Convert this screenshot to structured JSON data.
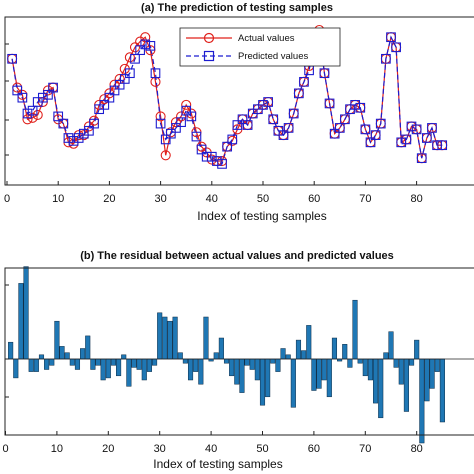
{
  "chart_data": [
    {
      "type": "line",
      "title": "(a) The prediction of testing samples",
      "xlabel": "Index of testing samples",
      "ylabel": "",
      "xlim": [
        0,
        85
      ],
      "ylim": [
        0,
        100
      ],
      "xticks": [
        0,
        10,
        20,
        30,
        40,
        50,
        60,
        70,
        80
      ],
      "grid": false,
      "legend_position": "top-center",
      "series": [
        {
          "name": "Actual values",
          "color": "#e0201b",
          "marker": "circle",
          "line": "solid",
          "x": [
            1,
            2,
            3,
            4,
            5,
            6,
            7,
            8,
            9,
            10,
            11,
            12,
            13,
            14,
            15,
            16,
            17,
            18,
            19,
            20,
            21,
            22,
            23,
            24,
            25,
            26,
            27,
            28,
            29,
            30,
            31,
            32,
            33,
            34,
            35,
            36,
            37,
            38,
            39,
            40,
            41,
            42,
            43,
            44,
            45,
            46,
            47,
            48,
            49,
            50,
            51,
            52,
            53,
            54,
            55,
            56,
            57,
            58,
            59,
            60,
            61,
            62,
            63,
            64,
            65,
            66,
            67,
            68,
            69,
            70,
            71,
            72,
            73,
            74,
            75,
            76,
            77,
            78,
            79,
            80,
            81,
            82,
            83,
            84,
            85
          ],
          "y": [
            80,
            60,
            55,
            38,
            39,
            41,
            50,
            58,
            60,
            38,
            35,
            22,
            21,
            27,
            27,
            33,
            37,
            48,
            52,
            56,
            62,
            66,
            73,
            81,
            88,
            92,
            95,
            86,
            64,
            40,
            13,
            29,
            36,
            40,
            48,
            42,
            29,
            19,
            15,
            10,
            9,
            9,
            19,
            23,
            31,
            38,
            34,
            42,
            45,
            48,
            50,
            38,
            30,
            27,
            32,
            42,
            56,
            64,
            75,
            95,
            100,
            70,
            49,
            28,
            32,
            38,
            45,
            48,
            46,
            31,
            22,
            27,
            35,
            80,
            95,
            88,
            22,
            24,
            33,
            31,
            11,
            25,
            32,
            20,
            20
          ]
        },
        {
          "name": "Predicted values",
          "color": "#1c1cd0",
          "marker": "square",
          "line": "dashed",
          "x": [
            1,
            2,
            3,
            4,
            5,
            6,
            7,
            8,
            9,
            10,
            11,
            12,
            13,
            14,
            15,
            16,
            17,
            18,
            19,
            20,
            21,
            22,
            23,
            24,
            25,
            26,
            27,
            28,
            29,
            30,
            31,
            32,
            33,
            34,
            35,
            36,
            37,
            38,
            39,
            40,
            41,
            42,
            43,
            44,
            45,
            46,
            47,
            48,
            49,
            50,
            51,
            52,
            53,
            54,
            55,
            56,
            57,
            58,
            59,
            60,
            61,
            62,
            63,
            64,
            65,
            66,
            67,
            68,
            69,
            70,
            71,
            72,
            73,
            74,
            75,
            76,
            77,
            78,
            79,
            80,
            81,
            82,
            83,
            84,
            85
          ],
          "y": [
            80,
            58,
            53,
            42,
            44,
            50,
            53,
            55,
            60,
            40,
            35,
            25,
            23,
            25,
            28,
            30,
            35,
            45,
            48,
            53,
            58,
            62,
            66,
            70,
            80,
            86,
            90,
            89,
            70,
            35,
            24,
            28,
            32,
            36,
            44,
            40,
            26,
            17,
            12,
            12,
            9,
            7,
            19,
            24,
            34,
            38,
            34,
            42,
            45,
            48,
            50,
            38,
            30,
            27,
            32,
            42,
            56,
            64,
            72,
            90,
            96,
            70,
            49,
            28,
            32,
            38,
            45,
            48,
            46,
            31,
            22,
            27,
            35,
            80,
            95,
            88,
            22,
            24,
            33,
            31,
            11,
            25,
            32,
            20,
            20
          ]
        }
      ]
    },
    {
      "type": "bar",
      "title": "(b) The residual between actual values and predicted values",
      "xlabel": "Index of testing samples",
      "ylabel": "",
      "xlim": [
        0,
        85
      ],
      "ylim": [
        -4,
        4.4
      ],
      "xticks": [
        0,
        10,
        20,
        30,
        40,
        50,
        60,
        70,
        80
      ],
      "grid": false,
      "color": "#1f77b4",
      "x": [
        1,
        2,
        3,
        4,
        5,
        6,
        7,
        8,
        9,
        10,
        11,
        12,
        13,
        14,
        15,
        16,
        17,
        18,
        19,
        20,
        21,
        22,
        23,
        24,
        25,
        26,
        27,
        28,
        29,
        30,
        31,
        32,
        33,
        34,
        35,
        36,
        37,
        38,
        39,
        40,
        41,
        42,
        43,
        44,
        45,
        46,
        47,
        48,
        49,
        50,
        51,
        52,
        53,
        54,
        55,
        56,
        57,
        58,
        59,
        60,
        61,
        62,
        63,
        64,
        65,
        66,
        67,
        68,
        69,
        70,
        71,
        72,
        73,
        74,
        75,
        76,
        77,
        78,
        79,
        80,
        81,
        82,
        83,
        84,
        85
      ],
      "values": [
        0.8,
        -0.9,
        3.6,
        4.4,
        -0.6,
        -0.6,
        0.2,
        -0.5,
        -0.3,
        1.8,
        0.6,
        0.3,
        -0.3,
        -0.5,
        0.5,
        1.1,
        -0.5,
        -0.3,
        -1.0,
        -0.9,
        -0.3,
        -0.8,
        0.2,
        -1.3,
        -0.4,
        -0.5,
        -1.0,
        -0.6,
        -0.3,
        2.2,
        2.0,
        1.8,
        2.0,
        0.3,
        -0.2,
        -1.0,
        -0.6,
        -1.2,
        2.0,
        -0.1,
        0.3,
        1.0,
        -0.2,
        -0.8,
        -1.2,
        -1.6,
        -0.3,
        -0.5,
        -1.0,
        -2.2,
        -1.8,
        -0.2,
        -0.6,
        0.5,
        0.2,
        -2.3,
        0.9,
        0.4,
        1.6,
        -1.5,
        -1.4,
        -1.0,
        -1.8,
        1.0,
        -0.1,
        0.7,
        -0.4,
        2.8,
        -0.2,
        -0.8,
        -1.0,
        -2.1,
        -2.8,
        0.3,
        1.3,
        -0.4,
        -1.2,
        -2.5,
        -0.3,
        0.9,
        -4.0,
        -2.0,
        -1.4,
        -0.6,
        -3.0
      ]
    }
  ]
}
